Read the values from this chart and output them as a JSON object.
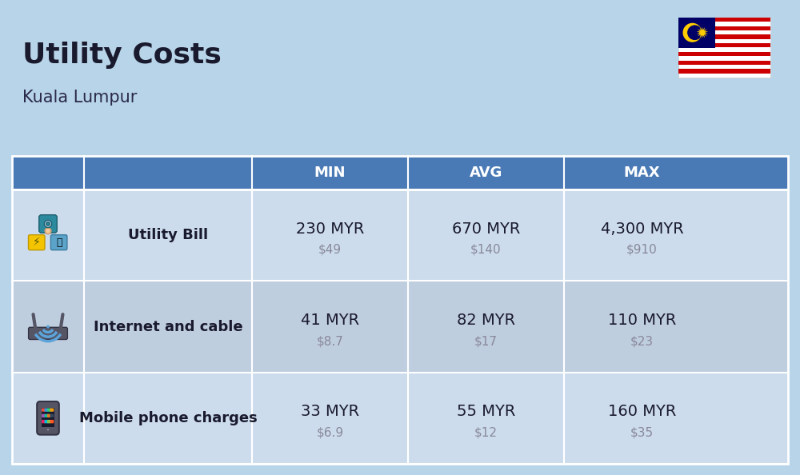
{
  "title": "Utility Costs",
  "subtitle": "Kuala Lumpur",
  "background_color": "#b8d4e8",
  "header_bg_color": "#4a7ab5",
  "header_text_color": "#ffffff",
  "row_bg_color_1": "#ccdcec",
  "row_bg_color_2": "#bfcedf",
  "col_header_labels": [
    "MIN",
    "AVG",
    "MAX"
  ],
  "rows": [
    {
      "label": "Utility Bill",
      "icon": "utility",
      "min_myr": "230 MYR",
      "min_usd": "$49",
      "avg_myr": "670 MYR",
      "avg_usd": "$140",
      "max_myr": "4,300 MYR",
      "max_usd": "$910"
    },
    {
      "label": "Internet and cable",
      "icon": "internet",
      "min_myr": "41 MYR",
      "min_usd": "$8.7",
      "avg_myr": "82 MYR",
      "avg_usd": "$17",
      "max_myr": "110 MYR",
      "max_usd": "$23"
    },
    {
      "label": "Mobile phone charges",
      "icon": "mobile",
      "min_myr": "33 MYR",
      "min_usd": "$6.9",
      "avg_myr": "55 MYR",
      "avg_usd": "$12",
      "max_myr": "160 MYR",
      "max_usd": "$35"
    }
  ],
  "title_fontsize": 26,
  "subtitle_fontsize": 15,
  "header_fontsize": 13,
  "label_fontsize": 13,
  "value_fontsize": 14,
  "usd_fontsize": 11
}
